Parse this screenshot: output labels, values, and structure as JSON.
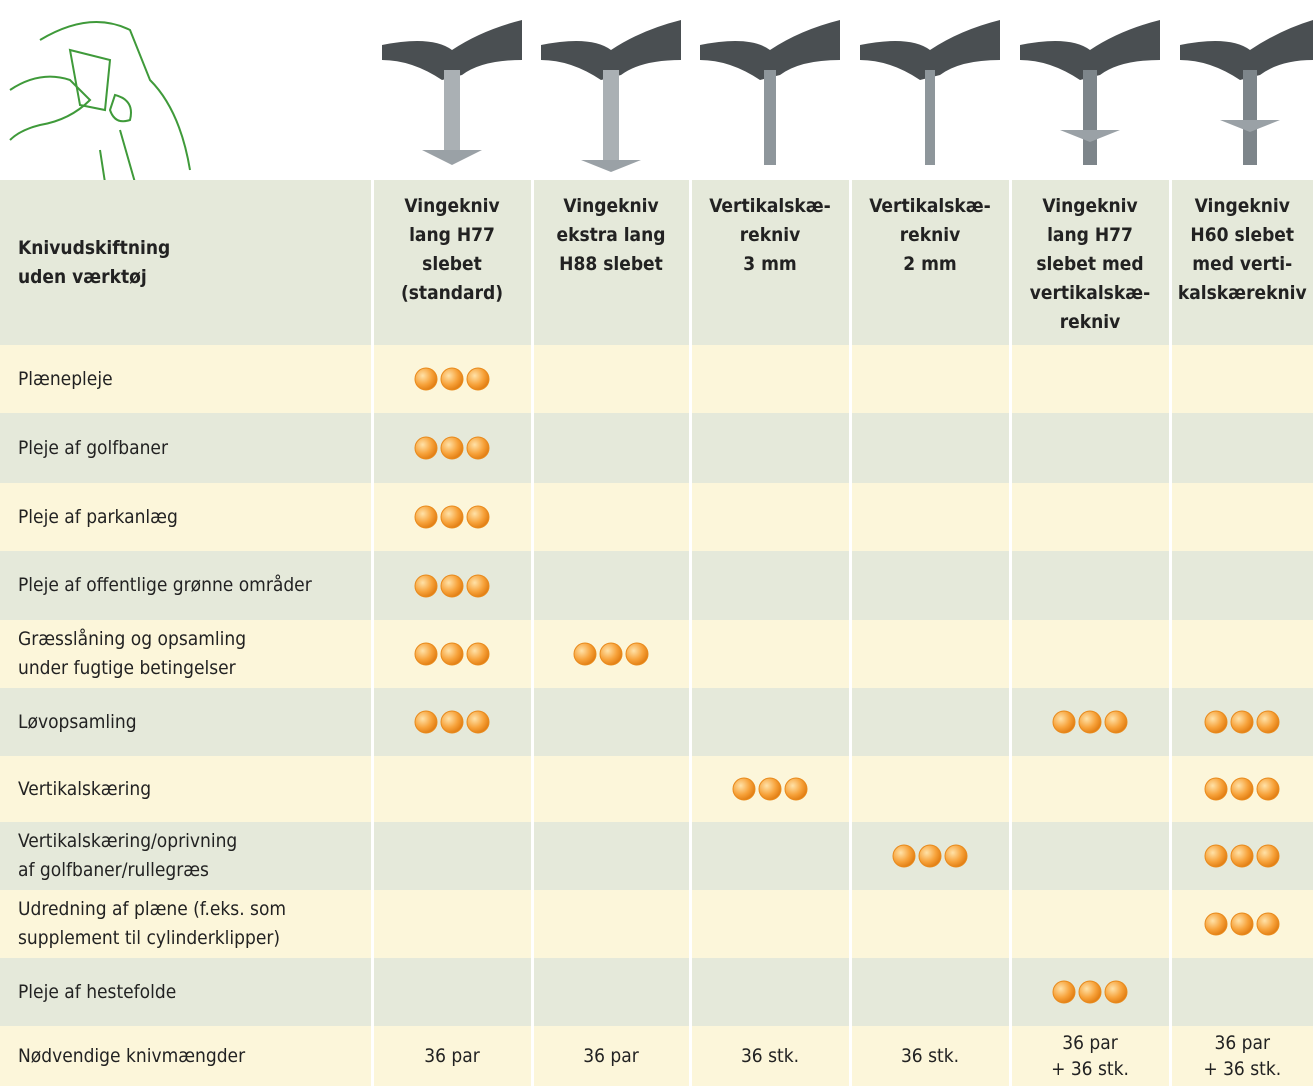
{
  "table": {
    "header": {
      "label": [
        "Knivudskiftning",
        "uden værktøj"
      ],
      "columns": [
        [
          "Vingekniv",
          "lang H77",
          "slebet",
          "(standard)"
        ],
        [
          "Vingekniv",
          "ekstra lang",
          "H88 slebet"
        ],
        [
          "Vertikalskæ-",
          "rekniv",
          "3 mm"
        ],
        [
          "Vertikalskæ-",
          "rekniv",
          "2 mm"
        ],
        [
          "Vingekniv",
          "lang H77",
          "slebet med",
          "vertikalskæ-",
          "rekniv"
        ],
        [
          "Vingekniv",
          "H60 slebet",
          "med verti-",
          "kalskærekniv"
        ]
      ]
    },
    "rows": [
      {
        "label": [
          "Plænepleje"
        ],
        "ratings": [
          3,
          null,
          null,
          null,
          null,
          null
        ]
      },
      {
        "label": [
          "Pleje af golfbaner"
        ],
        "ratings": [
          3,
          null,
          null,
          null,
          null,
          null
        ]
      },
      {
        "label": [
          "Pleje af parkanlæg"
        ],
        "ratings": [
          3,
          null,
          null,
          null,
          null,
          null
        ]
      },
      {
        "label": [
          "Pleje af offentlige grønne områder"
        ],
        "ratings": [
          3,
          null,
          null,
          null,
          null,
          null
        ]
      },
      {
        "label": [
          "Græsslåning og opsamling",
          "under fugtige betingelser"
        ],
        "ratings": [
          3,
          3,
          null,
          null,
          null,
          null
        ]
      },
      {
        "label": [
          "Løvopsamling"
        ],
        "ratings": [
          3,
          null,
          null,
          null,
          3,
          3
        ]
      },
      {
        "label": [
          "Vertikalskæring"
        ],
        "ratings": [
          null,
          null,
          3,
          null,
          null,
          3
        ]
      },
      {
        "label": [
          "Vertikalskæring/oprivning",
          "af golfbaner/rullegræs"
        ],
        "ratings": [
          null,
          null,
          null,
          3,
          null,
          3
        ]
      },
      {
        "label": [
          "Udredning af plæne (f.eks. som",
          "supplement til cylinderklipper)"
        ],
        "ratings": [
          null,
          null,
          null,
          null,
          null,
          3
        ]
      },
      {
        "label": [
          "Pleje af hestefolde"
        ],
        "ratings": [
          null,
          null,
          null,
          null,
          3,
          null
        ]
      }
    ],
    "footer": {
      "label": [
        "Nødvendige knivmængder"
      ],
      "values": [
        [
          "36 par"
        ],
        [
          "36 par"
        ],
        [
          "36 stk."
        ],
        [
          "36 stk."
        ],
        [
          "36 par",
          "+ 36 stk."
        ],
        [
          "36 par",
          "+ 36 stk."
        ]
      ]
    }
  }
}
